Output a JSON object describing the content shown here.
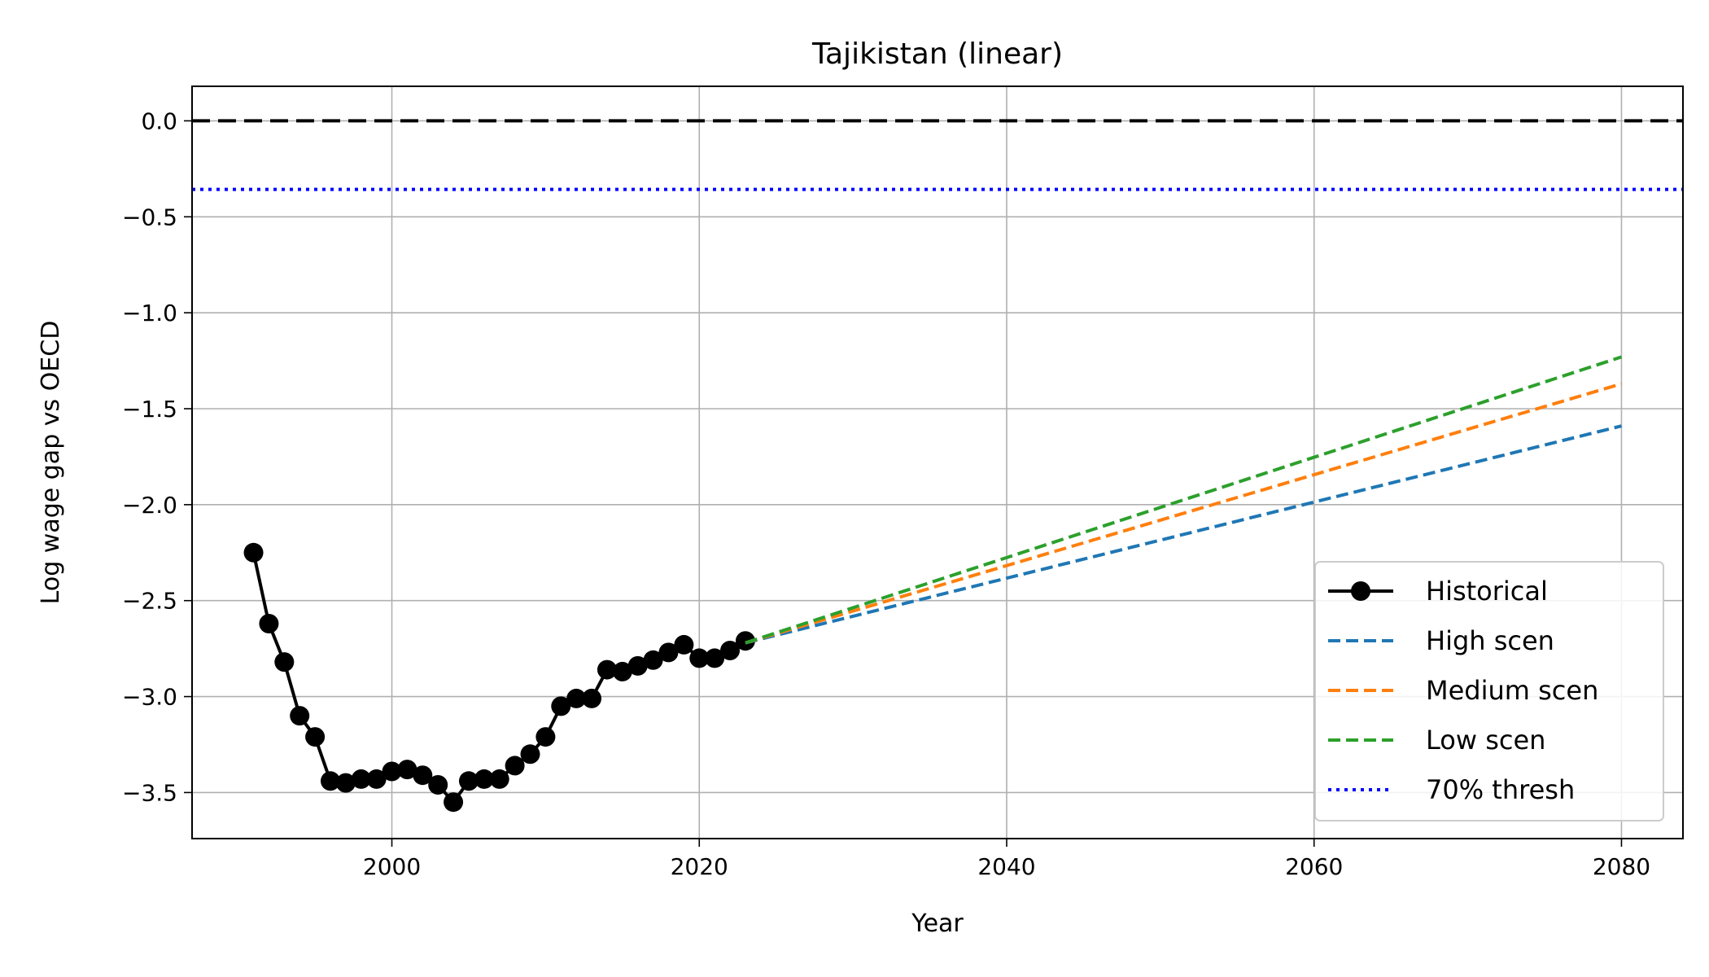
{
  "chart_data": {
    "type": "line",
    "title": "Tajikistan (linear)",
    "xlabel": "Year",
    "ylabel": "Log wage gap vs OECD",
    "xlim": [
      1987,
      2084
    ],
    "ylim": [
      -3.74,
      0.18
    ],
    "xticks": [
      2000,
      2020,
      2040,
      2060,
      2080
    ],
    "yticks": [
      0.0,
      -0.5,
      -1.0,
      -1.5,
      -2.0,
      -2.5,
      -3.0,
      -3.5
    ],
    "ytick_labels": [
      "0.0",
      "−0.5",
      "−1.0",
      "−1.5",
      "−2.0",
      "−2.5",
      "−3.0",
      "−3.5"
    ],
    "grid": true,
    "legend_position": "lower-right",
    "series": [
      {
        "name": "Historical",
        "style": "solid-markers",
        "color": "#000000",
        "x": [
          1991,
          1992,
          1993,
          1994,
          1995,
          1996,
          1997,
          1998,
          1999,
          2000,
          2001,
          2002,
          2003,
          2004,
          2005,
          2006,
          2007,
          2008,
          2009,
          2010,
          2011,
          2012,
          2013,
          2014,
          2015,
          2016,
          2017,
          2018,
          2019,
          2020,
          2021,
          2022,
          2023
        ],
        "y": [
          -2.25,
          -2.62,
          -2.82,
          -3.1,
          -3.21,
          -3.44,
          -3.45,
          -3.43,
          -3.43,
          -3.39,
          -3.38,
          -3.41,
          -3.46,
          -3.55,
          -3.44,
          -3.43,
          -3.43,
          -3.36,
          -3.3,
          -3.21,
          -3.05,
          -3.01,
          -3.01,
          -2.86,
          -2.87,
          -2.84,
          -2.81,
          -2.77,
          -2.73,
          -2.8,
          -2.8,
          -2.76,
          -2.71
        ]
      },
      {
        "name": "High scen",
        "style": "dashed",
        "color": "#1f77b4",
        "x": [
          2023,
          2080
        ],
        "y": [
          -2.72,
          -1.59
        ]
      },
      {
        "name": "Medium scen",
        "style": "dashed",
        "color": "#ff7f0e",
        "x": [
          2023,
          2080
        ],
        "y": [
          -2.72,
          -1.37
        ]
      },
      {
        "name": "Low scen",
        "style": "dashed",
        "color": "#2ca02c",
        "x": [
          2023,
          2080
        ],
        "y": [
          -2.72,
          -1.23
        ]
      },
      {
        "name": "70% thresh",
        "style": "dotted",
        "color": "#0000ff",
        "y_const": -0.357
      }
    ],
    "reference_line": {
      "y": 0.0,
      "style": "dashed",
      "color": "#000000"
    }
  }
}
